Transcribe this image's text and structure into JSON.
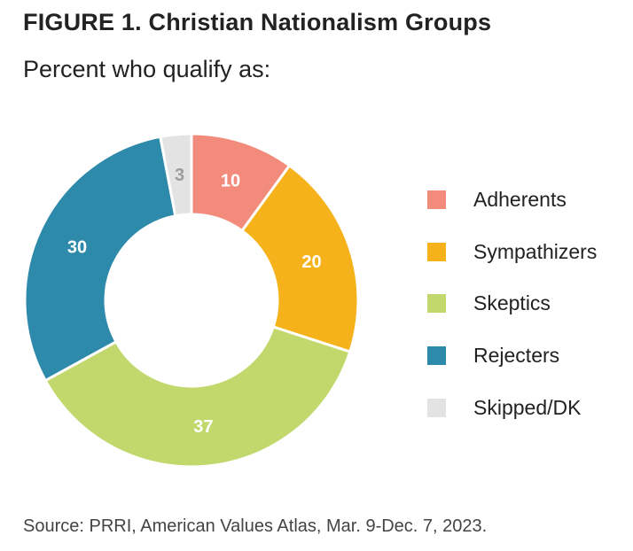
{
  "header": {
    "title": "FIGURE 1.  Christian Nationalism Groups",
    "subtitle": "Percent who qualify as:"
  },
  "chart_data": {
    "type": "pie",
    "variant": "donut",
    "title": "FIGURE 1.  Christian Nationalism Groups",
    "subtitle": "Percent who qualify as:",
    "unit": "percent",
    "legend_position": "right",
    "slices": [
      {
        "label": "Adherents",
        "value": 10,
        "color": "#f28b7c",
        "label_color": "#ffffff"
      },
      {
        "label": "Sympathizers",
        "value": 20,
        "color": "#f5b21a",
        "label_color": "#ffffff"
      },
      {
        "label": "Skeptics",
        "value": 37,
        "color": "#c3d86c",
        "label_color": "#ffffff"
      },
      {
        "label": "Rejecters",
        "value": 30,
        "color": "#2e8aab",
        "label_color": "#ffffff"
      },
      {
        "label": "Skipped/DK",
        "value": 3,
        "color": "#e3e3e3",
        "label_color": "#9b9b9b"
      }
    ]
  },
  "footer": {
    "source": "Source: PRRI, American Values Atlas, Mar. 9-Dec. 7, 2023."
  }
}
